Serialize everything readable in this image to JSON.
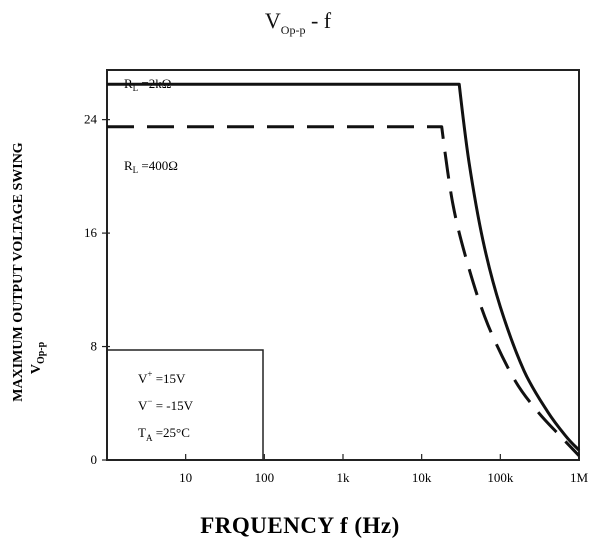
{
  "chart_data": {
    "type": "line",
    "title": {
      "main": "V",
      "sub": "Op-p",
      "tail": " - f"
    },
    "xlabel": "FRQUENCY  f (Hz)",
    "ylabel": {
      "line1": "MAXIMUM OUTPUT VOLTAGE SWING",
      "line2_main": "V",
      "line2_sub": "Op-p"
    },
    "x_scale": "log",
    "xlim": [
      1,
      1000000
    ],
    "ylim": [
      0,
      27.5
    ],
    "x_ticks": [
      {
        "value": 10,
        "label": "10"
      },
      {
        "value": 100,
        "label": "100"
      },
      {
        "value": 1000,
        "label": "1k"
      },
      {
        "value": 10000,
        "label": "10k"
      },
      {
        "value": 100000,
        "label": "100k"
      },
      {
        "value": 1000000,
        "label": "1M"
      }
    ],
    "y_ticks": [
      {
        "value": 0,
        "label": "0"
      },
      {
        "value": 8,
        "label": "8"
      },
      {
        "value": 16,
        "label": "16"
      },
      {
        "value": 24,
        "label": "24"
      }
    ],
    "grid": false,
    "series": [
      {
        "name": "R_L = 2kΩ",
        "label_main": "R",
        "label_sub": "L",
        "label_tail": " =2kΩ",
        "style": "solid",
        "points": [
          [
            1,
            26.5
          ],
          [
            30000,
            26.5
          ],
          [
            40000,
            21
          ],
          [
            60000,
            15.5
          ],
          [
            100000,
            10.8
          ],
          [
            200000,
            6.3
          ],
          [
            400000,
            3.4
          ],
          [
            700000,
            1.6
          ],
          [
            1000000,
            0.7
          ]
        ]
      },
      {
        "name": "R_L = 400Ω",
        "label_main": "R",
        "label_sub": "L",
        "label_tail": " =400Ω",
        "style": "dashed",
        "points": [
          [
            1,
            23.5
          ],
          [
            18000,
            23.5
          ],
          [
            25000,
            18
          ],
          [
            40000,
            13.5
          ],
          [
            70000,
            9.5
          ],
          [
            150000,
            5.7
          ],
          [
            300000,
            3.4
          ],
          [
            600000,
            1.6
          ],
          [
            1000000,
            0.3
          ]
        ]
      }
    ],
    "conditions": [
      {
        "main": "V",
        "sup": "+",
        "tail": " =15V"
      },
      {
        "main": "V",
        "sup": "−",
        "tail": " = -15V"
      },
      {
        "main": "T",
        "sub": "A",
        "tail": " =25°C"
      }
    ]
  }
}
